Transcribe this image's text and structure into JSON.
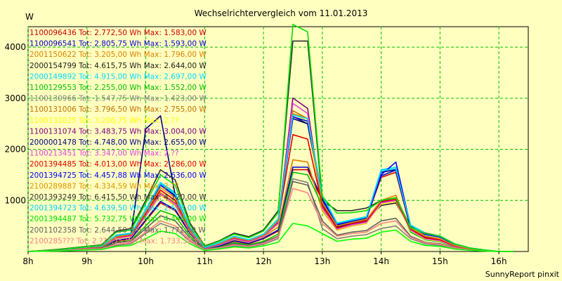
{
  "chart_data": {
    "type": "line",
    "title": "Wechselrichtervergleich vom 11.01.2013",
    "ylabel": "W",
    "xlabel": "",
    "footer": "SunnyReport pinxit",
    "ylim": [
      0,
      4400
    ],
    "xlim": [
      8,
      16.5
    ],
    "grid": true,
    "legend_position": "top-left",
    "x_ticks": [
      8,
      9,
      10,
      11,
      12,
      13,
      14,
      15,
      16
    ],
    "x_tick_labels": [
      "8h",
      "9h",
      "10h",
      "11h",
      "12h",
      "13h",
      "14h",
      "15h",
      "16h"
    ],
    "y_ticks": [
      1000,
      2000,
      3000,
      4000
    ],
    "y_tick_labels": [
      "1000",
      "2000",
      "3000",
      "4000"
    ],
    "x": [
      8,
      8.5,
      9,
      9.25,
      9.5,
      9.75,
      10,
      10.25,
      10.5,
      10.75,
      11,
      11.25,
      11.5,
      11.75,
      12,
      12.25,
      12.5,
      12.75,
      13,
      13.25,
      13.5,
      13.75,
      14,
      14.25,
      14.5,
      14.75,
      15,
      15.25,
      15.5,
      15.75,
      16,
      16.25
    ],
    "series": [
      {
        "name": "1100096436",
        "label": "1100096436 Tot: 2.772,50 Wh Max: 1.583,00 W",
        "color": "#cc0000",
        "values": [
          0,
          20,
          60,
          80,
          200,
          250,
          600,
          950,
          800,
          350,
          50,
          100,
          200,
          150,
          250,
          400,
          1600,
          1600,
          1000,
          500,
          600,
          650,
          1450,
          1550,
          450,
          250,
          200,
          100,
          50,
          20,
          0,
          0
        ]
      },
      {
        "name": "1100096541",
        "label": "1100096541 Tot: 2.805,75 Wh Max: 1.593,00 W",
        "color": "#0000cc",
        "values": [
          0,
          20,
          60,
          80,
          220,
          260,
          620,
          980,
          820,
          360,
          50,
          110,
          210,
          160,
          260,
          420,
          1650,
          1650,
          1020,
          520,
          620,
          680,
          1480,
          1593,
          470,
          260,
          210,
          110,
          50,
          20,
          0,
          0
        ]
      },
      {
        "name": "2001150622",
        "label": "2001150622 Tot: 3.205,00 Wh Max: 1.796,00 W",
        "color": "#e08000",
        "values": [
          0,
          25,
          70,
          90,
          250,
          300,
          700,
          1100,
          900,
          380,
          60,
          130,
          230,
          180,
          280,
          480,
          1796,
          1750,
          800,
          420,
          500,
          550,
          1000,
          1100,
          420,
          230,
          200,
          100,
          50,
          20,
          0,
          0
        ]
      },
      {
        "name": "2000154799",
        "label": "2000154799 Tot: 4.615,75 Wh Max: 2.644,00 W",
        "color": "#202020",
        "values": [
          0,
          30,
          80,
          100,
          300,
          350,
          800,
          1300,
          1100,
          450,
          80,
          160,
          280,
          220,
          320,
          600,
          2644,
          2500,
          950,
          480,
          560,
          620,
          900,
          950,
          450,
          280,
          230,
          120,
          60,
          25,
          0,
          0
        ]
      },
      {
        "name": "2000149892",
        "label": "2000149892 Tot: 4.915,00 Wh Max: 2.697,00 W",
        "color": "#00d8ff",
        "values": [
          0,
          30,
          90,
          110,
          320,
          360,
          820,
          1350,
          1150,
          460,
          80,
          170,
          300,
          230,
          340,
          640,
          2697,
          2600,
          1100,
          560,
          620,
          680,
          1600,
          1650,
          520,
          360,
          300,
          150,
          70,
          30,
          0,
          0
        ]
      },
      {
        "name": "1100129553",
        "label": "1100129553 Tot: 2.255,00 Wh Max: 1.552,00 W",
        "color": "#00c000",
        "values": [
          0,
          20,
          60,
          80,
          180,
          220,
          500,
          800,
          700,
          300,
          40,
          90,
          170,
          130,
          200,
          340,
          1552,
          1500,
          900,
          440,
          520,
          560,
          1000,
          1050,
          380,
          230,
          190,
          90,
          40,
          15,
          0,
          0
        ]
      },
      {
        "name": "1100130966",
        "label": "1100130966 Tot: 1.547,75 Wh Max: 1.423,00 W",
        "color": "#808080",
        "values": [
          0,
          15,
          40,
          50,
          120,
          150,
          350,
          550,
          450,
          200,
          30,
          60,
          110,
          90,
          140,
          250,
          1423,
          1350,
          450,
          250,
          300,
          330,
          450,
          500,
          250,
          150,
          120,
          60,
          30,
          10,
          0,
          0
        ]
      },
      {
        "name": "1100131006",
        "label": "1100131006 Tot: 3.796,50 Wh Max: 2.755,00 W",
        "color": "#c07000",
        "values": [
          0,
          25,
          70,
          90,
          260,
          300,
          700,
          1150,
          950,
          400,
          60,
          140,
          250,
          190,
          300,
          560,
          2755,
          2600,
          850,
          440,
          520,
          570,
          950,
          1000,
          420,
          250,
          210,
          100,
          50,
          20,
          0,
          0
        ]
      },
      {
        "name": "1100131025",
        "label": "1100131025 Tot: 3.206,75 Wh Max: 2.??",
        "color": "#ffff00",
        "values": [
          0,
          25,
          70,
          90,
          250,
          290,
          680,
          1100,
          920,
          390,
          60,
          130,
          240,
          180,
          290,
          540,
          2700,
          2550,
          830,
          430,
          510,
          560,
          930,
          980,
          410,
          240,
          200,
          100,
          50,
          20,
          0,
          0
        ]
      },
      {
        "name": "1100131074",
        "label": "1100131074 Tot: 3.483,75 Wh Max: 3.004,00 W",
        "color": "#800080",
        "values": [
          0,
          30,
          80,
          100,
          280,
          320,
          750,
          1200,
          1000,
          420,
          70,
          150,
          260,
          200,
          310,
          580,
          3004,
          2800,
          880,
          450,
          540,
          590,
          960,
          1000,
          430,
          260,
          220,
          110,
          55,
          22,
          0,
          0
        ]
      },
      {
        "name": "2000001478",
        "label": "2000001478 Tot: 4.748,00 Wh Max: 2.655,00 W",
        "color": "#000080",
        "values": [
          0,
          30,
          85,
          105,
          310,
          350,
          2400,
          2655,
          1100,
          450,
          80,
          165,
          290,
          225,
          330,
          620,
          2600,
          2500,
          1050,
          540,
          600,
          660,
          1550,
          1600,
          500,
          340,
          290,
          140,
          65,
          28,
          0,
          0
        ]
      },
      {
        "name": "1100213451",
        "label": "1100213451 Tot: 3.347,00 Wh Max: 2.??",
        "color": "#e040e0",
        "values": [
          0,
          25,
          70,
          90,
          260,
          300,
          700,
          1120,
          930,
          400,
          60,
          135,
          245,
          185,
          295,
          550,
          2900,
          2700,
          850,
          440,
          520,
          570,
          950,
          1000,
          420,
          250,
          210,
          100,
          50,
          20,
          0,
          0
        ]
      },
      {
        "name": "2001394485",
        "label": "2001394485 Tot: 4.013,00 Wh Max: 2.286,00 W",
        "color": "#e00000",
        "values": [
          0,
          28,
          75,
          95,
          280,
          320,
          750,
          1200,
          1000,
          420,
          70,
          150,
          270,
          210,
          320,
          600,
          2286,
          2200,
          900,
          460,
          550,
          600,
          980,
          1020,
          440,
          270,
          230,
          110,
          55,
          22,
          0,
          0
        ]
      },
      {
        "name": "2001394725",
        "label": "2001394725 Tot: 4.457,88 Wh Max: 2.636,00 W",
        "color": "#0000ff",
        "values": [
          0,
          30,
          85,
          100,
          300,
          340,
          800,
          1300,
          1080,
          440,
          75,
          160,
          280,
          220,
          330,
          610,
          2636,
          2550,
          1000,
          520,
          580,
          640,
          1500,
          1750,
          490,
          330,
          280,
          135,
          62,
          26,
          0,
          0
        ]
      },
      {
        "name": "2100289887",
        "label": "2100289887 Tot: 4.334,59 Wh Max: 2.??",
        "color": "#e09000",
        "values": [
          0,
          30,
          80,
          100,
          290,
          330,
          780,
          1250,
          1050,
          430,
          75,
          155,
          275,
          215,
          320,
          600,
          2700,
          2600,
          960,
          500,
          570,
          630,
          1000,
          1050,
          460,
          300,
          250,
          120,
          58,
          24,
          0,
          0
        ]
      },
      {
        "name": "2001393249",
        "label": "2001393249 Tot: 6.415,50 Wh Max: 4.120,00 W",
        "color": "#303030",
        "values": [
          0,
          40,
          100,
          130,
          400,
          450,
          1000,
          1600,
          1400,
          560,
          110,
          210,
          360,
          290,
          420,
          800,
          4120,
          4120,
          1000,
          800,
          800,
          850,
          1000,
          1050,
          480,
          360,
          300,
          150,
          70,
          30,
          0,
          0
        ]
      },
      {
        "name": "2001394723",
        "label": "2001394723 Tot: 4.639,50 Wh Max: 2.673,00 W",
        "color": "#00d0ff",
        "values": [
          0,
          30,
          88,
          108,
          315,
          355,
          810,
          1330,
          1120,
          455,
          78,
          168,
          295,
          228,
          338,
          630,
          2673,
          2600,
          1080,
          550,
          610,
          670,
          1580,
          1620,
          510,
          350,
          295,
          145,
          68,
          29,
          0,
          0
        ]
      },
      {
        "name": "2001394487",
        "label": "2001394487 Tot: 5.732,75 Wh Max: 4.444,00 W",
        "color": "#00e000",
        "values": [
          0,
          35,
          95,
          120,
          380,
          420,
          950,
          1500,
          1300,
          520,
          100,
          200,
          340,
          270,
          400,
          760,
          4444,
          4300,
          1080,
          750,
          760,
          800,
          1000,
          1050,
          470,
          350,
          300,
          150,
          70,
          30,
          0,
          0
        ]
      },
      {
        "name": "2001102358",
        "label": "2001102358 Tot: 2.644,50 Wh Max: 1.?71,00 W",
        "color": "#606060",
        "values": [
          0,
          18,
          50,
          65,
          170,
          200,
          450,
          700,
          600,
          260,
          40,
          80,
          150,
          110,
          180,
          300,
          1371,
          1300,
          600,
          320,
          380,
          410,
          600,
          650,
          300,
          180,
          150,
          75,
          35,
          12,
          0,
          0
        ]
      },
      {
        "name": "2100285???",
        "label": "2100285??? Tot: 2.??3,75 Wh Max: 1.?33,38 W",
        "color": "#ff8080",
        "values": [
          0,
          15,
          45,
          55,
          140,
          170,
          380,
          600,
          500,
          220,
          35,
          70,
          130,
          100,
          160,
          280,
          1233,
          1150,
          550,
          300,
          350,
          380,
          550,
          600,
          280,
          170,
          140,
          70,
          32,
          12,
          0,
          0
        ]
      },
      {
        "name": "",
        "label": "",
        "color": "#00ff00",
        "values": [
          0,
          10,
          30,
          40,
          100,
          120,
          250,
          400,
          350,
          150,
          20,
          50,
          90,
          70,
          110,
          180,
          550,
          500,
          350,
          200,
          240,
          260,
          380,
          420,
          200,
          120,
          100,
          50,
          25,
          10,
          0,
          0
        ]
      }
    ]
  }
}
